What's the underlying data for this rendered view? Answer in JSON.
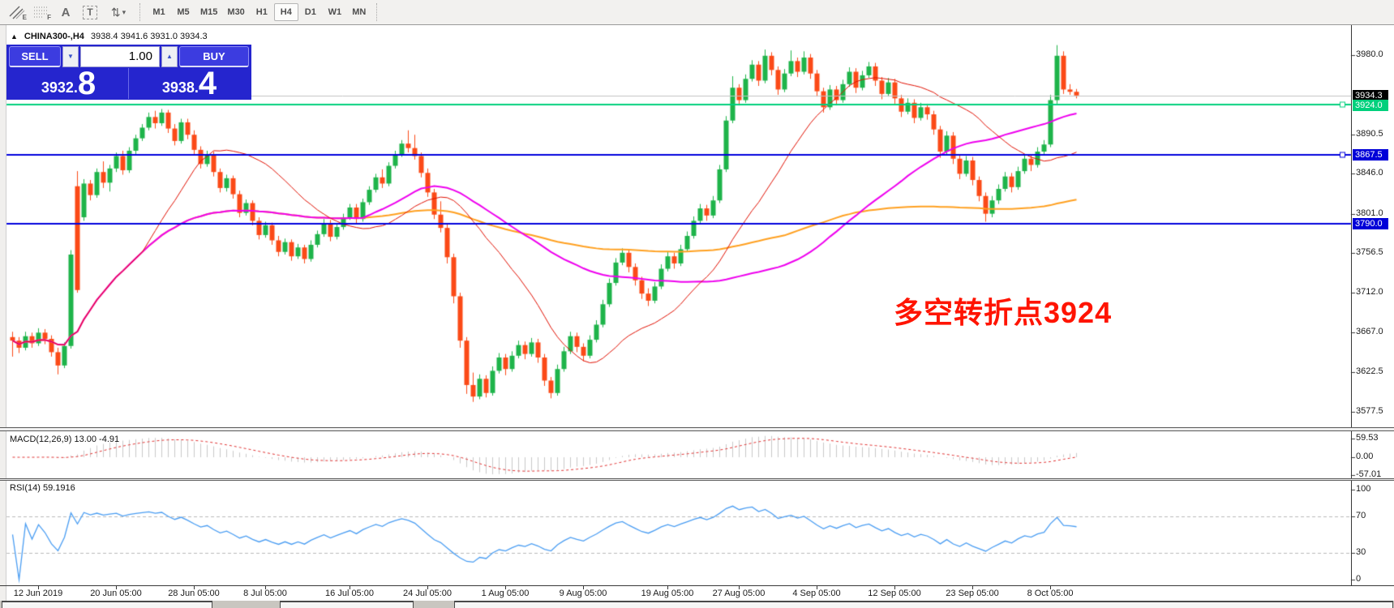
{
  "toolbar": {
    "tools": [
      {
        "name": "equidistant-channel",
        "badge": "E"
      },
      {
        "name": "fibonacci-retracement",
        "badge": "F"
      },
      {
        "name": "text",
        "glyph": "A"
      },
      {
        "name": "text-label",
        "glyph": "T"
      },
      {
        "name": "arrows",
        "glyph": "⇅"
      }
    ],
    "dropdown_caret": "▾",
    "timeframes": [
      "M1",
      "M5",
      "M15",
      "M30",
      "H1",
      "H4",
      "D1",
      "W1",
      "MN"
    ],
    "active_timeframe": "H4"
  },
  "chart_header": {
    "collapse_icon": "▲",
    "symbol": "CHINA300-,H4",
    "ohlc_text": "3938.4 3941.6 3931.0 3934.3"
  },
  "trade_panel": {
    "sell_label": "SELL",
    "buy_label": "BUY",
    "volume": "1.00",
    "spin_down_glyph": "▼",
    "spin_up_glyph": "▲",
    "sell_price": {
      "base": "3932",
      "point": ".",
      "big": "8"
    },
    "buy_price": {
      "base": "3938",
      "point": ".",
      "big": "4"
    }
  },
  "annotation": {
    "text": "多空转折点3924",
    "color": "#ff1400"
  },
  "price_axis": {
    "ticks": [
      "3980.0",
      "3890.5",
      "3846.0",
      "3801.0",
      "3756.5",
      "3712.0",
      "3667.0",
      "3622.5",
      "3577.5"
    ],
    "tick_values": [
      3980.0,
      3890.5,
      3846.0,
      3801.0,
      3756.5,
      3712.0,
      3667.0,
      3622.5,
      3577.5
    ],
    "badges": [
      {
        "label": "3934.3",
        "value": 3934.3,
        "bg": "#000000",
        "fg": "#ffffff",
        "kind": "last-price"
      },
      {
        "label": "3924.0",
        "value": 3924.0,
        "bg": "#00d07c",
        "fg": "#ffffff",
        "kind": "hline-green"
      },
      {
        "label": "3867.5",
        "value": 3867.5,
        "bg": "#0000d8",
        "fg": "#ffffff",
        "kind": "hline-blue"
      },
      {
        "label": "3790.0",
        "value": 3790.0,
        "bg": "#0000d8",
        "fg": "#ffffff",
        "kind": "hline-blue"
      }
    ]
  },
  "indicators": {
    "macd": {
      "label": "MACD(12,26,9) 13.00 -4.91",
      "ticks": [
        "59.53",
        "0.00",
        "-57.01"
      ],
      "tick_values": [
        59.53,
        0,
        -57.01
      ],
      "fast": 12,
      "slow": 26,
      "signal": 9
    },
    "rsi": {
      "label": "RSI(14) 59.1916",
      "ticks": [
        "100",
        "70",
        "30",
        "0"
      ],
      "tick_values": [
        100,
        70,
        30,
        0
      ],
      "levels": [
        70,
        30
      ],
      "period": 14
    }
  },
  "chart_data": {
    "type": "candlestick",
    "symbol": "CHINA300-",
    "timeframe": "H4",
    "title": "CHINA300- H4 candlestick chart with MACD(12,26,9) and RSI(14)",
    "ylim": [
      3560,
      4009
    ],
    "colors": {
      "up": "#1eb44a",
      "down": "#fb4a17",
      "ma_fast": "#e01000",
      "ma_mid": "#ee00ee",
      "ma_slow": "#ffa020",
      "macd_bar": "#c9c9c9",
      "macd_signal": "#e03030",
      "rsi": "#4a9df2",
      "hline_blue": "#0000dd",
      "hline_green": "#00d07c",
      "last_price_line": "#c0c0c0",
      "tick": "#383838"
    },
    "moving_averages": [
      {
        "period": 21,
        "color_key": "ma_fast",
        "width": 1
      },
      {
        "period": 55,
        "color_key": "ma_mid",
        "width": 2
      },
      {
        "period": 120,
        "color_key": "ma_slow",
        "width": 2
      }
    ],
    "hlines": [
      {
        "value": 3934.3,
        "color_key": "last_price_line",
        "width": 1,
        "kind": "last-price-line",
        "handle": false
      },
      {
        "value": 3924.0,
        "color_key": "hline_green",
        "width": 2,
        "kind": "horizontal-line",
        "handle": true
      },
      {
        "value": 3867.5,
        "color_key": "hline_blue",
        "width": 2,
        "kind": "horizontal-line",
        "handle": true
      },
      {
        "value": 3790.0,
        "color_key": "hline_blue",
        "width": 2,
        "kind": "horizontal-line",
        "handle": false
      }
    ],
    "time_ticks": [
      {
        "label": "12 Jun 2019",
        "index": 4
      },
      {
        "label": "20 Jun 05:00",
        "index": 16
      },
      {
        "label": "28 Jun 05:00",
        "index": 28
      },
      {
        "label": "8 Jul 05:00",
        "index": 39
      },
      {
        "label": "16 Jul 05:00",
        "index": 52
      },
      {
        "label": "24 Jul 05:00",
        "index": 64
      },
      {
        "label": "1 Aug 05:00",
        "index": 76
      },
      {
        "label": "9 Aug 05:00",
        "index": 88
      },
      {
        "label": "19 Aug 05:00",
        "index": 101
      },
      {
        "label": "27 Aug 05:00",
        "index": 112
      },
      {
        "label": "4 Sep 05:00",
        "index": 124
      },
      {
        "label": "12 Sep 05:00",
        "index": 136
      },
      {
        "label": "23 Sep 05:00",
        "index": 148
      },
      {
        "label": "8 Oct 05:00",
        "index": 160
      }
    ],
    "ohlc": [
      [
        3662,
        3668,
        3640,
        3658
      ],
      [
        3658,
        3662,
        3644,
        3650
      ],
      [
        3650,
        3668,
        3647,
        3663
      ],
      [
        3663,
        3667,
        3650,
        3655
      ],
      [
        3655,
        3672,
        3652,
        3667
      ],
      [
        3667,
        3671,
        3654,
        3660
      ],
      [
        3660,
        3664,
        3640,
        3645
      ],
      [
        3645,
        3650,
        3620,
        3630
      ],
      [
        3630,
        3656,
        3627,
        3652
      ],
      [
        3652,
        3760,
        3649,
        3755
      ],
      [
        3832,
        3849,
        3712,
        3715
      ],
      [
        3797,
        3840,
        3793,
        3835
      ],
      [
        3835,
        3839,
        3816,
        3822
      ],
      [
        3822,
        3852,
        3819,
        3848
      ],
      [
        3848,
        3860,
        3830,
        3836
      ],
      [
        3836,
        3856,
        3826,
        3852
      ],
      [
        3852,
        3870,
        3848,
        3866
      ],
      [
        3866,
        3872,
        3845,
        3850
      ],
      [
        3850,
        3876,
        3847,
        3872
      ],
      [
        3872,
        3890,
        3868,
        3886
      ],
      [
        3886,
        3902,
        3883,
        3898
      ],
      [
        3898,
        3915,
        3895,
        3910
      ],
      [
        3910,
        3917,
        3897,
        3903
      ],
      [
        3903,
        3919,
        3900,
        3915
      ],
      [
        3915,
        3918,
        3892,
        3897
      ],
      [
        3897,
        3902,
        3878,
        3883
      ],
      [
        3883,
        3908,
        3880,
        3904
      ],
      [
        3904,
        3908,
        3885,
        3890
      ],
      [
        3890,
        3895,
        3868,
        3873
      ],
      [
        3873,
        3877,
        3852,
        3857
      ],
      [
        3857,
        3872,
        3854,
        3868
      ],
      [
        3868,
        3871,
        3843,
        3848
      ],
      [
        3848,
        3852,
        3825,
        3830
      ],
      [
        3830,
        3845,
        3826,
        3841
      ],
      [
        3841,
        3844,
        3818,
        3823
      ],
      [
        3823,
        3827,
        3797,
        3802
      ],
      [
        3802,
        3817,
        3799,
        3813
      ],
      [
        3813,
        3816,
        3788,
        3793
      ],
      [
        3793,
        3797,
        3772,
        3777
      ],
      [
        3777,
        3792,
        3774,
        3788
      ],
      [
        3788,
        3791,
        3766,
        3771
      ],
      [
        3771,
        3776,
        3753,
        3758
      ],
      [
        3758,
        3773,
        3755,
        3769
      ],
      [
        3769,
        3772,
        3748,
        3753
      ],
      [
        3753,
        3767,
        3750,
        3763
      ],
      [
        3763,
        3766,
        3745,
        3750
      ],
      [
        3750,
        3771,
        3747,
        3766
      ],
      [
        3766,
        3782,
        3763,
        3778
      ],
      [
        3778,
        3795,
        3775,
        3790
      ],
      [
        3790,
        3794,
        3770,
        3775
      ],
      [
        3775,
        3790,
        3772,
        3786
      ],
      [
        3786,
        3801,
        3783,
        3797
      ],
      [
        3797,
        3812,
        3794,
        3808
      ],
      [
        3808,
        3812,
        3790,
        3795
      ],
      [
        3795,
        3818,
        3792,
        3814
      ],
      [
        3814,
        3832,
        3811,
        3828
      ],
      [
        3828,
        3846,
        3825,
        3842
      ],
      [
        3842,
        3851,
        3830,
        3835
      ],
      [
        3835,
        3859,
        3832,
        3855
      ],
      [
        3855,
        3872,
        3852,
        3868
      ],
      [
        3868,
        3884,
        3865,
        3880
      ],
      [
        3880,
        3895,
        3870,
        3875
      ],
      [
        3875,
        3890,
        3862,
        3866
      ],
      [
        3866,
        3870,
        3842,
        3847
      ],
      [
        3847,
        3852,
        3820,
        3825
      ],
      [
        3825,
        3829,
        3795,
        3800
      ],
      [
        3800,
        3815,
        3780,
        3785
      ],
      [
        3785,
        3789,
        3745,
        3752
      ],
      [
        3752,
        3756,
        3700,
        3708
      ],
      [
        3708,
        3712,
        3650,
        3658
      ],
      [
        3658,
        3662,
        3598,
        3608
      ],
      [
        3608,
        3622,
        3589,
        3595
      ],
      [
        3595,
        3620,
        3592,
        3615
      ],
      [
        3615,
        3619,
        3594,
        3599
      ],
      [
        3599,
        3629,
        3596,
        3624
      ],
      [
        3624,
        3644,
        3621,
        3639
      ],
      [
        3639,
        3643,
        3619,
        3626
      ],
      [
        3626,
        3646,
        3623,
        3641
      ],
      [
        3641,
        3658,
        3638,
        3653
      ],
      [
        3653,
        3657,
        3637,
        3643
      ],
      [
        3643,
        3661,
        3640,
        3656
      ],
      [
        3656,
        3660,
        3633,
        3639
      ],
      [
        3639,
        3643,
        3607,
        3613
      ],
      [
        3613,
        3617,
        3593,
        3599
      ],
      [
        3599,
        3631,
        3596,
        3626
      ],
      [
        3626,
        3651,
        3623,
        3646
      ],
      [
        3646,
        3668,
        3643,
        3663
      ],
      [
        3663,
        3667,
        3645,
        3651
      ],
      [
        3651,
        3655,
        3635,
        3641
      ],
      [
        3641,
        3664,
        3638,
        3659
      ],
      [
        3659,
        3681,
        3656,
        3676
      ],
      [
        3676,
        3704,
        3673,
        3699
      ],
      [
        3699,
        3728,
        3696,
        3723
      ],
      [
        3723,
        3751,
        3720,
        3746
      ],
      [
        3746,
        3762,
        3743,
        3757
      ],
      [
        3757,
        3761,
        3735,
        3741
      ],
      [
        3741,
        3745,
        3720,
        3726
      ],
      [
        3726,
        3730,
        3705,
        3711
      ],
      [
        3711,
        3717,
        3697,
        3703
      ],
      [
        3703,
        3724,
        3700,
        3719
      ],
      [
        3719,
        3744,
        3716,
        3739
      ],
      [
        3739,
        3758,
        3736,
        3753
      ],
      [
        3753,
        3757,
        3739,
        3745
      ],
      [
        3745,
        3766,
        3742,
        3761
      ],
      [
        3761,
        3781,
        3758,
        3776
      ],
      [
        3776,
        3798,
        3773,
        3793
      ],
      [
        3793,
        3812,
        3790,
        3807
      ],
      [
        3807,
        3811,
        3793,
        3799
      ],
      [
        3799,
        3821,
        3796,
        3816
      ],
      [
        3816,
        3856,
        3813,
        3851
      ],
      [
        3851,
        3911,
        3848,
        3906
      ],
      [
        3906,
        3956,
        3903,
        3943
      ],
      [
        3943,
        3947,
        3923,
        3929
      ],
      [
        3929,
        3958,
        3926,
        3953
      ],
      [
        3953,
        3974,
        3950,
        3969
      ],
      [
        3969,
        3973,
        3945,
        3951
      ],
      [
        3951,
        3986,
        3948,
        3979
      ],
      [
        3979,
        3983,
        3957,
        3963
      ],
      [
        3963,
        3967,
        3935,
        3941
      ],
      [
        3941,
        3964,
        3938,
        3959
      ],
      [
        3959,
        3985,
        3956,
        3973
      ],
      [
        3973,
        3977,
        3955,
        3961
      ],
      [
        3961,
        3984,
        3958,
        3977
      ],
      [
        3977,
        3981,
        3953,
        3959
      ],
      [
        3959,
        3963,
        3933,
        3939
      ],
      [
        3939,
        3943,
        3915,
        3921
      ],
      [
        3921,
        3946,
        3918,
        3941
      ],
      [
        3941,
        3945,
        3923,
        3929
      ],
      [
        3929,
        3952,
        3926,
        3947
      ],
      [
        3947,
        3966,
        3944,
        3961
      ],
      [
        3961,
        3965,
        3937,
        3943
      ],
      [
        3943,
        3962,
        3940,
        3957
      ],
      [
        3957,
        3972,
        3954,
        3967
      ],
      [
        3967,
        3971,
        3945,
        3951
      ],
      [
        3951,
        3955,
        3930,
        3936
      ],
      [
        3936,
        3954,
        3933,
        3949
      ],
      [
        3949,
        3953,
        3925,
        3931
      ],
      [
        3931,
        3935,
        3910,
        3916
      ],
      [
        3916,
        3931,
        3913,
        3926
      ],
      [
        3926,
        3930,
        3903,
        3909
      ],
      [
        3909,
        3926,
        3906,
        3921
      ],
      [
        3921,
        3925,
        3907,
        3913
      ],
      [
        3913,
        3917,
        3890,
        3896
      ],
      [
        3896,
        3900,
        3864,
        3871
      ],
      [
        3871,
        3894,
        3868,
        3889
      ],
      [
        3889,
        3893,
        3857,
        3863
      ],
      [
        3863,
        3867,
        3840,
        3846
      ],
      [
        3846,
        3866,
        3843,
        3861
      ],
      [
        3861,
        3865,
        3833,
        3839
      ],
      [
        3839,
        3843,
        3815,
        3821
      ],
      [
        3821,
        3825,
        3792,
        3801
      ],
      [
        3801,
        3821,
        3797,
        3816
      ],
      [
        3816,
        3834,
        3812,
        3829
      ],
      [
        3829,
        3848,
        3826,
        3843
      ],
      [
        3843,
        3847,
        3825,
        3831
      ],
      [
        3831,
        3854,
        3828,
        3849
      ],
      [
        3849,
        3868,
        3846,
        3863
      ],
      [
        3863,
        3867,
        3849,
        3856
      ],
      [
        3856,
        3876,
        3853,
        3871
      ],
      [
        3871,
        3884,
        3868,
        3879
      ],
      [
        3879,
        3935,
        3876,
        3929
      ],
      [
        3929,
        3991,
        3925,
        3979
      ],
      [
        3979,
        3984,
        3936,
        3941
      ],
      [
        3941,
        3947,
        3935,
        3938.4
      ],
      [
        3938.4,
        3941.6,
        3931,
        3934.3
      ]
    ]
  }
}
